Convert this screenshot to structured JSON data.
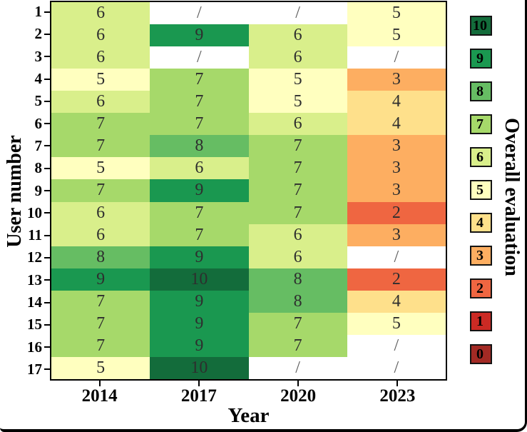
{
  "chart_data": {
    "type": "heatmap",
    "title": "",
    "xlabel": "Year",
    "ylabel": "User number",
    "x_categories": [
      "2014",
      "2017",
      "2020",
      "2023"
    ],
    "y_categories": [
      "1",
      "2",
      "3",
      "4",
      "5",
      "6",
      "7",
      "8",
      "9",
      "10",
      "11",
      "12",
      "13",
      "14",
      "15",
      "16",
      "17"
    ],
    "values": [
      [
        6,
        null,
        null,
        5
      ],
      [
        6,
        9,
        6,
        5
      ],
      [
        6,
        null,
        6,
        null
      ],
      [
        5,
        7,
        5,
        3
      ],
      [
        6,
        7,
        5,
        4
      ],
      [
        7,
        7,
        6,
        4
      ],
      [
        7,
        8,
        7,
        3
      ],
      [
        5,
        6,
        7,
        3
      ],
      [
        7,
        9,
        7,
        3
      ],
      [
        6,
        7,
        7,
        2
      ],
      [
        6,
        7,
        6,
        3
      ],
      [
        8,
        9,
        6,
        null
      ],
      [
        9,
        10,
        8,
        2
      ],
      [
        7,
        9,
        8,
        4
      ],
      [
        7,
        9,
        7,
        5
      ],
      [
        7,
        9,
        7,
        null
      ],
      [
        5,
        10,
        null,
        null
      ]
    ],
    "missing_marker": "/",
    "colorbar": {
      "title": "Overall evaluation",
      "position": "right",
      "levels": [
        10,
        9,
        8,
        7,
        6,
        5,
        4,
        3,
        2,
        1,
        0
      ],
      "colors": {
        "10": "#136c3b",
        "9": "#1a9850",
        "8": "#66bd63",
        "7": "#a6d96a",
        "6": "#d9ef8b",
        "5": "#ffffbf",
        "4": "#fee08b",
        "3": "#fdae61",
        "2": "#ef6641",
        "1": "#cb2a24",
        "0": "#a32a24"
      }
    },
    "value_range": [
      0,
      10
    ],
    "grid": false,
    "cell_text_color": "#2e2e2e",
    "missing_text_color": "#5a5a5a",
    "missing_cell_color": "#ffffff",
    "frame_color": "#000000"
  }
}
